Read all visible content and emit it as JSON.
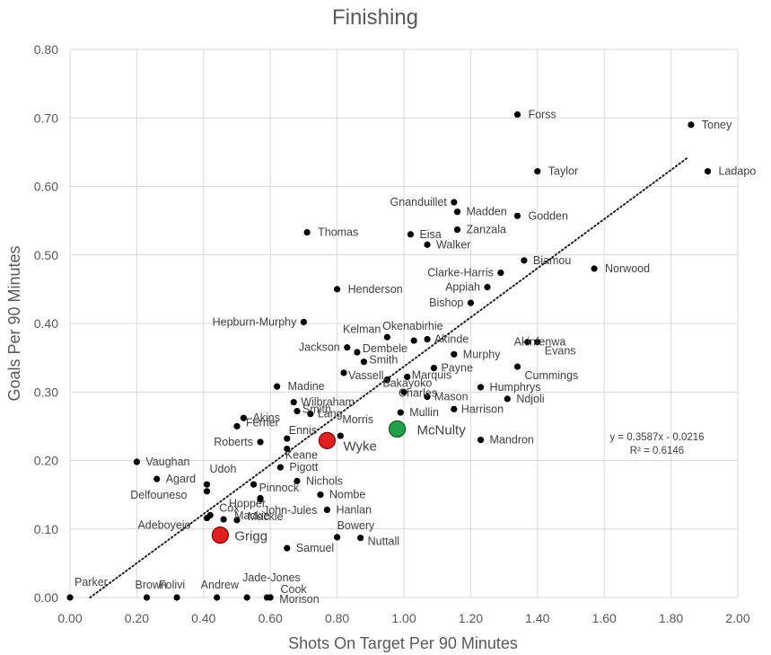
{
  "chart_data": {
    "type": "scatter",
    "title": "Finishing",
    "xlabel": "Shots On Target Per 90 Minutes",
    "ylabel": "Goals Per 90 Minutes",
    "xlim": [
      0,
      2
    ],
    "ylim": [
      0,
      0.8
    ],
    "xticks": [
      "0.00",
      "0.20",
      "0.40",
      "0.60",
      "0.80",
      "1.00",
      "1.20",
      "1.40",
      "1.60",
      "1.80",
      "2.00"
    ],
    "yticks": [
      "0.00",
      "0.10",
      "0.20",
      "0.30",
      "0.40",
      "0.50",
      "0.60",
      "0.70",
      "0.80"
    ],
    "grid": true,
    "trendline": {
      "type": "linear",
      "slope": 0.3587,
      "intercept": -0.0216,
      "equation": "y = 0.3587x - 0.0216",
      "r2": "R² = 0.6146",
      "x_range": [
        0.06,
        1.85
      ]
    },
    "colors": {
      "point": "#000000",
      "highlight_red": "#e02020",
      "highlight_darkred": "#c00000",
      "highlight_green": "#22a04a",
      "grid": "#d9d9d9",
      "text": "#595959"
    },
    "points": [
      {
        "name": "Forss",
        "x": 1.34,
        "y": 0.705
      },
      {
        "name": "Toney",
        "x": 1.86,
        "y": 0.69
      },
      {
        "name": "Taylor",
        "x": 1.4,
        "y": 0.622
      },
      {
        "name": "Ladapo",
        "x": 1.91,
        "y": 0.622
      },
      {
        "name": "Gnanduillet",
        "x": 1.15,
        "y": 0.577
      },
      {
        "name": "Madden",
        "x": 1.16,
        "y": 0.563
      },
      {
        "name": "Godden",
        "x": 1.34,
        "y": 0.557
      },
      {
        "name": "Zanzala",
        "x": 1.16,
        "y": 0.537
      },
      {
        "name": "Thomas",
        "x": 0.71,
        "y": 0.533
      },
      {
        "name": "Eisa",
        "x": 1.02,
        "y": 0.53
      },
      {
        "name": "Walker",
        "x": 1.07,
        "y": 0.515
      },
      {
        "name": "Biamou",
        "x": 1.36,
        "y": 0.492
      },
      {
        "name": "Norwood",
        "x": 1.57,
        "y": 0.48
      },
      {
        "name": "Clarke-Harris",
        "x": 1.29,
        "y": 0.474
      },
      {
        "name": "Appiah",
        "x": 1.25,
        "y": 0.453
      },
      {
        "name": "Henderson",
        "x": 0.8,
        "y": 0.45
      },
      {
        "name": "Bishop",
        "x": 1.2,
        "y": 0.43
      },
      {
        "name": "Hepburn-Murphy",
        "x": 0.7,
        "y": 0.402
      },
      {
        "name": "Kelman",
        "x": 0.95,
        "y": 0.38
      },
      {
        "name": "Okenabirhie",
        "x": 1.03,
        "y": 0.375
      },
      {
        "name": "Akinde",
        "x": 1.07,
        "y": 0.377
      },
      {
        "name": "Akinfenwa",
        "x": 1.37,
        "y": 0.373
      },
      {
        "name": "Evans",
        "x": 1.4,
        "y": 0.373
      },
      {
        "name": "Jackson",
        "x": 0.83,
        "y": 0.365
      },
      {
        "name": "Dembele",
        "x": 0.86,
        "y": 0.358
      },
      {
        "name": "Murphy",
        "x": 1.15,
        "y": 0.355
      },
      {
        "name": "Smith",
        "x": 0.88,
        "y": 0.344
      },
      {
        "name": "Payne",
        "x": 1.09,
        "y": 0.335
      },
      {
        "name": "Cummings",
        "x": 1.34,
        "y": 0.337
      },
      {
        "name": "Vassell",
        "x": 0.82,
        "y": 0.328
      },
      {
        "name": "Marquis",
        "x": 1.01,
        "y": 0.322
      },
      {
        "name": "Bakayoko",
        "x": 0.95,
        "y": 0.318
      },
      {
        "name": "Madine",
        "x": 0.62,
        "y": 0.308
      },
      {
        "name": "Humphrys",
        "x": 1.23,
        "y": 0.307
      },
      {
        "name": "Charles",
        "x": 1.0,
        "y": 0.3
      },
      {
        "name": "Mason",
        "x": 1.07,
        "y": 0.293
      },
      {
        "name": "Ndjoli",
        "x": 1.31,
        "y": 0.29
      },
      {
        "name": "Wilbraham",
        "x": 0.67,
        "y": 0.285
      },
      {
        "name": "Harrison",
        "x": 1.15,
        "y": 0.275
      },
      {
        "name": "Smith",
        "x": 0.68,
        "y": 0.272
      },
      {
        "name": "Mullin",
        "x": 0.99,
        "y": 0.27
      },
      {
        "name": "Lang",
        "x": 0.72,
        "y": 0.268
      },
      {
        "name": "Akins",
        "x": 0.52,
        "y": 0.262
      },
      {
        "name": "Ferrier",
        "x": 0.5,
        "y": 0.25
      },
      {
        "name": "McNulty",
        "x": 0.98,
        "y": 0.246,
        "highlight": "green"
      },
      {
        "name": "Morris",
        "x": 0.81,
        "y": 0.236
      },
      {
        "name": "Ennis",
        "x": 0.65,
        "y": 0.232
      },
      {
        "name": "Wyke",
        "x": 0.77,
        "y": 0.229,
        "highlight": "red"
      },
      {
        "name": "Mandron",
        "x": 1.23,
        "y": 0.23
      },
      {
        "name": "Roberts",
        "x": 0.57,
        "y": 0.227
      },
      {
        "name": "Keane",
        "x": 0.65,
        "y": 0.217
      },
      {
        "name": "Vaughan",
        "x": 0.2,
        "y": 0.198
      },
      {
        "name": "Pigott",
        "x": 0.63,
        "y": 0.19
      },
      {
        "name": "Agard",
        "x": 0.26,
        "y": 0.173
      },
      {
        "name": "Nichols",
        "x": 0.68,
        "y": 0.17
      },
      {
        "name": "Udoh",
        "x": 0.41,
        "y": 0.165
      },
      {
        "name": "Pinnock",
        "x": 0.55,
        "y": 0.165
      },
      {
        "name": "Delfouneso",
        "x": 0.41,
        "y": 0.155
      },
      {
        "name": "Nombe",
        "x": 0.75,
        "y": 0.15
      },
      {
        "name": "Hopper",
        "x": 0.57,
        "y": 0.145
      },
      {
        "name": "John-Jules",
        "x": 0.57,
        "y": 0.143
      },
      {
        "name": "Hanlan",
        "x": 0.77,
        "y": 0.128
      },
      {
        "name": "Cox",
        "x": 0.42,
        "y": 0.12
      },
      {
        "name": "Adeboyejo",
        "x": 0.41,
        "y": 0.116
      },
      {
        "name": "Mackie",
        "x": 0.5,
        "y": 0.113
      },
      {
        "name": "Mackie",
        "x": 0.46,
        "y": 0.114
      },
      {
        "name": "Grigg",
        "x": 0.45,
        "y": 0.091,
        "highlight": "red"
      },
      {
        "name": "Bowery",
        "x": 0.8,
        "y": 0.088
      },
      {
        "name": "Nuttall",
        "x": 0.87,
        "y": 0.087
      },
      {
        "name": "Samuel",
        "x": 0.65,
        "y": 0.072
      },
      {
        "name": "Parker",
        "x": 0.0,
        "y": 0.0
      },
      {
        "name": "Brown",
        "x": 0.23,
        "y": 0.0
      },
      {
        "name": "Folivi",
        "x": 0.32,
        "y": 0.0
      },
      {
        "name": "Andrew",
        "x": 0.44,
        "y": 0.0
      },
      {
        "name": "Jade-Jones",
        "x": 0.53,
        "y": 0.0
      },
      {
        "name": "Cook",
        "x": 0.59,
        "y": 0.0
      },
      {
        "name": "Morison",
        "x": 0.6,
        "y": 0.0
      }
    ]
  }
}
